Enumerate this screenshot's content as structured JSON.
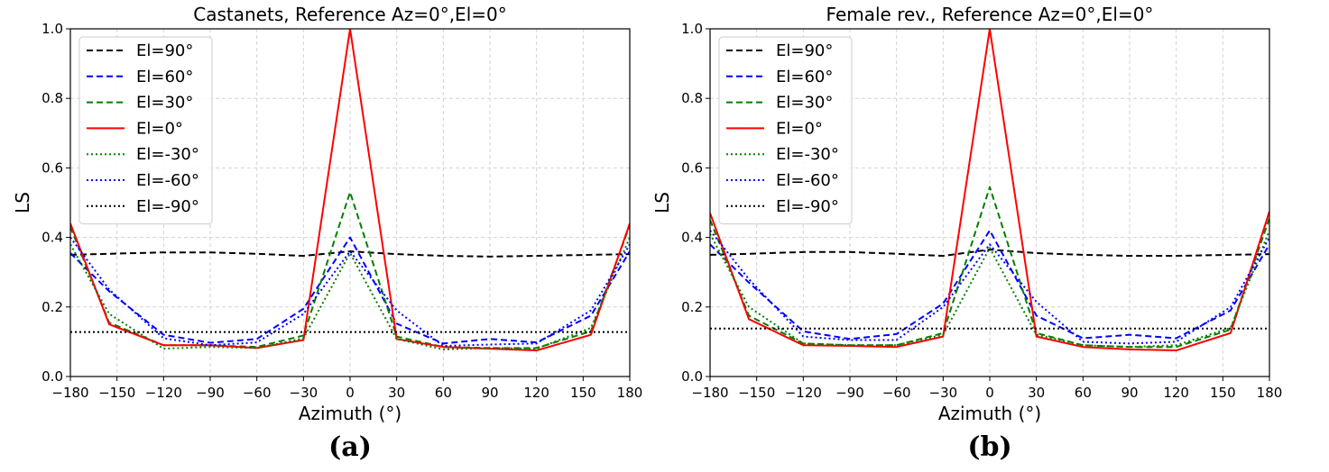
{
  "chart_data": [
    {
      "type": "line",
      "title": "Castanets, Reference Az=0°,El=0°",
      "xlabel": "Azimuth (°)",
      "ylabel": "LS",
      "panel_label": "(a)",
      "xlim": [
        -180,
        180
      ],
      "ylim": [
        0,
        1
      ],
      "grid": true,
      "legend_position": "top-left",
      "x": [
        -180,
        -155,
        -120,
        -90,
        -60,
        -30,
        0,
        30,
        60,
        90,
        120,
        155,
        180
      ],
      "x_ticks": [
        -180,
        -150,
        -120,
        -90,
        -60,
        -30,
        0,
        30,
        60,
        90,
        120,
        150,
        180
      ],
      "x_tick_labels": [
        "−180",
        "−150",
        "−120",
        "−90",
        "−60",
        "−30",
        "0",
        "30",
        "60",
        "90",
        "120",
        "150",
        "180"
      ],
      "y_ticks": [
        0,
        0.2,
        0.4,
        0.6,
        0.8,
        1.0
      ],
      "y_tick_labels": [
        "0.0",
        "0.2",
        "0.4",
        "0.6",
        "0.8",
        "1.0"
      ],
      "series": [
        {
          "name": "El=90°",
          "color": "#000000",
          "style": "dashed",
          "values": [
            0.35,
            0.353,
            0.357,
            0.357,
            0.353,
            0.347,
            0.36,
            0.352,
            0.347,
            0.345,
            0.347,
            0.35,
            0.352
          ]
        },
        {
          "name": "El=60°",
          "color": "#0000ff",
          "style": "dashed",
          "values": [
            0.355,
            0.245,
            0.12,
            0.097,
            0.108,
            0.195,
            0.4,
            0.152,
            0.095,
            0.108,
            0.098,
            0.175,
            0.36
          ]
        },
        {
          "name": "El=30°",
          "color": "#008000",
          "style": "dashed",
          "values": [
            0.43,
            0.155,
            0.09,
            0.09,
            0.085,
            0.118,
            0.53,
            0.115,
            0.085,
            0.082,
            0.082,
            0.13,
            0.435
          ]
        },
        {
          "name": "El=0°",
          "color": "#ff0000",
          "style": "solid",
          "values": [
            0.44,
            0.15,
            0.09,
            0.09,
            0.082,
            0.105,
            1.0,
            0.108,
            0.085,
            0.08,
            0.075,
            0.12,
            0.44
          ]
        },
        {
          "name": "El=-30°",
          "color": "#008000",
          "style": "dotted",
          "values": [
            0.38,
            0.18,
            0.08,
            0.085,
            0.082,
            0.11,
            0.355,
            0.108,
            0.078,
            0.082,
            0.08,
            0.14,
            0.4
          ]
        },
        {
          "name": "El=-60°",
          "color": "#0000ff",
          "style": "dotted",
          "values": [
            0.4,
            0.25,
            0.11,
            0.09,
            0.098,
            0.18,
            0.36,
            0.19,
            0.088,
            0.092,
            0.095,
            0.19,
            0.38
          ]
        },
        {
          "name": "El=-90°",
          "color": "#000000",
          "style": "dotted",
          "values": [
            0.128,
            0.128,
            0.128,
            0.128,
            0.128,
            0.128,
            0.128,
            0.128,
            0.128,
            0.128,
            0.128,
            0.128,
            0.128
          ]
        }
      ]
    },
    {
      "type": "line",
      "title": "Female rev., Reference Az=0°,El=0°",
      "xlabel": "Azimuth (°)",
      "ylabel": "LS",
      "panel_label": "(b)",
      "xlim": [
        -180,
        180
      ],
      "ylim": [
        0,
        1
      ],
      "grid": true,
      "legend_position": "top-left",
      "x": [
        -180,
        -155,
        -120,
        -90,
        -60,
        -30,
        0,
        30,
        60,
        90,
        120,
        155,
        180
      ],
      "x_ticks": [
        -180,
        -150,
        -120,
        -90,
        -60,
        -30,
        0,
        30,
        60,
        90,
        120,
        150,
        180
      ],
      "x_tick_labels": [
        "−180",
        "−150",
        "−120",
        "−90",
        "−60",
        "−30",
        "0",
        "30",
        "60",
        "90",
        "120",
        "150",
        "180"
      ],
      "y_ticks": [
        0,
        0.2,
        0.4,
        0.6,
        0.8,
        1.0
      ],
      "y_tick_labels": [
        "0.0",
        "0.2",
        "0.4",
        "0.6",
        "0.8",
        "1.0"
      ],
      "series": [
        {
          "name": "El=90°",
          "color": "#000000",
          "style": "dashed",
          "values": [
            0.35,
            0.353,
            0.358,
            0.358,
            0.353,
            0.347,
            0.365,
            0.355,
            0.35,
            0.347,
            0.347,
            0.35,
            0.352
          ]
        },
        {
          "name": "El=60°",
          "color": "#0000ff",
          "style": "dashed",
          "values": [
            0.38,
            0.27,
            0.13,
            0.108,
            0.122,
            0.21,
            0.42,
            0.175,
            0.11,
            0.12,
            0.11,
            0.19,
            0.38
          ]
        },
        {
          "name": "El=30°",
          "color": "#008000",
          "style": "dashed",
          "values": [
            0.45,
            0.175,
            0.095,
            0.09,
            0.09,
            0.125,
            0.545,
            0.125,
            0.09,
            0.085,
            0.085,
            0.135,
            0.455
          ]
        },
        {
          "name": "El=0°",
          "color": "#ff0000",
          "style": "solid",
          "values": [
            0.47,
            0.165,
            0.09,
            0.088,
            0.085,
            0.115,
            1.0,
            0.115,
            0.085,
            0.078,
            0.075,
            0.125,
            0.475
          ]
        },
        {
          "name": "El=-30°",
          "color": "#008000",
          "style": "dotted",
          "values": [
            0.41,
            0.2,
            0.095,
            0.09,
            0.09,
            0.12,
            0.37,
            0.12,
            0.09,
            0.085,
            0.09,
            0.14,
            0.42
          ]
        },
        {
          "name": "El=-60°",
          "color": "#0000ff",
          "style": "dotted",
          "values": [
            0.42,
            0.28,
            0.115,
            0.105,
            0.105,
            0.2,
            0.38,
            0.215,
            0.1,
            0.095,
            0.1,
            0.2,
            0.4
          ]
        },
        {
          "name": "El=-90°",
          "color": "#000000",
          "style": "dotted",
          "values": [
            0.138,
            0.138,
            0.138,
            0.138,
            0.138,
            0.138,
            0.138,
            0.138,
            0.138,
            0.138,
            0.138,
            0.138,
            0.138
          ]
        }
      ]
    }
  ]
}
